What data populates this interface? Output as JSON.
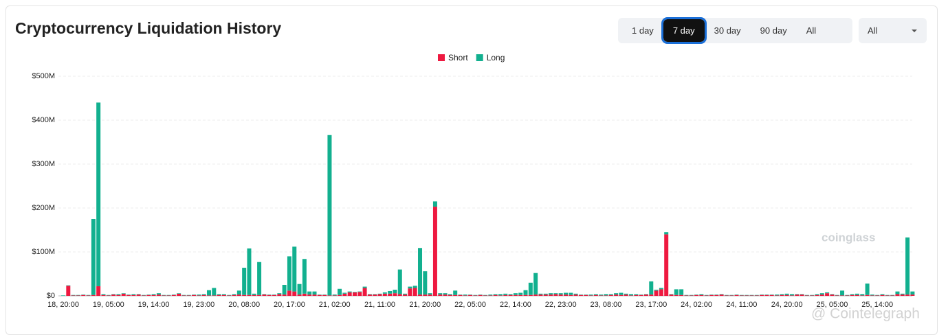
{
  "page": {
    "title": "Cryptocurrency Liquidation History",
    "ranges": [
      "1 day",
      "7 day",
      "30 day",
      "90 day",
      "All"
    ],
    "selected_range": 1,
    "dropdown": "All",
    "watermarks": [
      "coinglass",
      "@ Cointelegraph"
    ]
  },
  "chart_data": {
    "type": "stacked_bar",
    "categories": [
      "18, 20:00",
      null,
      null,
      null,
      null,
      null,
      null,
      null,
      null,
      "19, 05:00",
      null,
      null,
      null,
      null,
      null,
      null,
      null,
      null,
      "19, 14:00",
      null,
      null,
      null,
      null,
      null,
      null,
      null,
      null,
      "19, 23:00",
      null,
      null,
      null,
      null,
      null,
      null,
      null,
      null,
      "20, 08:00",
      null,
      null,
      null,
      null,
      null,
      null,
      null,
      null,
      "20, 17:00",
      null,
      null,
      null,
      null,
      null,
      null,
      null,
      null,
      "21, 02:00",
      null,
      null,
      null,
      null,
      null,
      null,
      null,
      null,
      "21, 11:00",
      null,
      null,
      null,
      null,
      null,
      null,
      null,
      null,
      "21, 20:00",
      null,
      null,
      null,
      null,
      null,
      null,
      null,
      null,
      "22, 05:00",
      null,
      null,
      null,
      null,
      null,
      null,
      null,
      null,
      "22, 14:00",
      null,
      null,
      null,
      null,
      null,
      null,
      null,
      null,
      "22, 23:00",
      null,
      null,
      null,
      null,
      null,
      null,
      null,
      null,
      "23, 08:00",
      null,
      null,
      null,
      null,
      null,
      null,
      null,
      null,
      "23, 17:00",
      null,
      null,
      null,
      null,
      null,
      null,
      null,
      null,
      "24, 02:00",
      null,
      null,
      null,
      null,
      null,
      null,
      null,
      null,
      "24, 11:00",
      null,
      null,
      null,
      null,
      null,
      null,
      null,
      null,
      "24, 20:00",
      null,
      null,
      null,
      null,
      null,
      null,
      null,
      null,
      "25, 05:00",
      null,
      null,
      null,
      null,
      null,
      null,
      null,
      null,
      "25, 14:00",
      null,
      null,
      null,
      null,
      null,
      null,
      null
    ],
    "series": [
      {
        "name": "Short",
        "color": "#ee1940",
        "values": [
          0,
          23,
          1,
          1,
          2,
          1,
          2,
          22,
          2,
          1,
          3,
          2,
          5,
          2,
          2,
          3,
          1,
          2,
          2,
          3,
          1,
          1,
          2,
          5,
          1,
          1,
          2,
          1,
          2,
          1,
          1,
          2,
          2,
          1,
          2,
          3,
          2,
          2,
          2,
          2,
          3,
          2,
          2,
          4,
          3,
          12,
          10,
          3,
          5,
          3,
          3,
          2,
          2,
          1,
          1,
          2,
          5,
          8,
          8,
          9,
          18,
          3,
          3,
          4,
          5,
          5,
          6,
          4,
          3,
          17,
          18,
          3,
          3,
          3,
          203,
          3,
          3,
          2,
          2,
          2,
          1,
          2,
          1,
          2,
          1,
          1,
          2,
          1,
          2,
          2,
          2,
          2,
          2,
          2,
          3,
          3,
          3,
          3,
          4,
          3,
          3,
          2,
          3,
          2,
          2,
          1,
          2,
          1,
          1,
          2,
          3,
          2,
          3,
          1,
          2,
          2,
          3,
          3,
          12,
          15,
          140,
          3,
          2,
          2,
          1,
          1,
          2,
          2,
          1,
          2,
          2,
          3,
          1,
          1,
          2,
          1,
          1,
          1,
          1,
          2,
          2,
          2,
          1,
          2,
          2,
          1,
          3,
          3,
          1,
          1,
          2,
          3,
          6,
          3,
          1,
          1,
          1,
          2,
          2,
          1,
          2,
          1,
          1,
          2,
          1,
          1,
          4,
          3,
          3,
          3
        ]
      },
      {
        "name": "Long",
        "color": "#12b08f",
        "values": [
          1,
          1,
          1,
          1,
          1,
          1,
          173,
          418,
          2,
          1,
          1,
          2,
          1,
          1,
          2,
          1,
          1,
          1,
          2,
          3,
          1,
          1,
          1,
          1,
          1,
          1,
          1,
          2,
          2,
          12,
          17,
          2,
          2,
          1,
          2,
          9,
          62,
          106,
          3,
          75,
          1,
          1,
          1,
          2,
          22,
          78,
          102,
          24,
          79,
          7,
          7,
          1,
          1,
          365,
          2,
          14,
          2,
          2,
          1,
          1,
          3,
          1,
          1,
          1,
          3,
          6,
          8,
          56,
          2,
          4,
          5,
          106,
          53,
          3,
          12,
          3,
          3,
          2,
          10,
          1,
          2,
          1,
          1,
          1,
          1,
          2,
          2,
          3,
          3,
          2,
          4,
          5,
          11,
          28,
          49,
          2,
          2,
          3,
          2,
          3,
          4,
          5,
          2,
          1,
          1,
          2,
          2,
          2,
          3,
          2,
          3,
          5,
          2,
          3,
          2,
          1,
          1,
          30,
          2,
          3,
          5,
          1,
          13,
          13,
          1,
          1,
          1,
          2,
          1,
          1,
          1,
          1,
          1,
          1,
          1,
          1,
          1,
          1,
          1,
          1,
          1,
          1,
          2,
          2,
          3,
          3,
          1,
          1,
          1,
          1,
          2,
          3,
          2,
          1,
          1,
          11,
          1,
          2,
          3,
          3,
          26,
          2,
          1,
          2,
          1,
          1,
          6,
          2,
          130,
          7
        ]
      }
    ],
    "ylim": [
      0,
      500
    ],
    "yticks": [
      {
        "value": 0,
        "label": "$0"
      },
      {
        "value": 100,
        "label": "$100M"
      },
      {
        "value": 200,
        "label": "$200M"
      },
      {
        "value": 300,
        "label": "$300M"
      },
      {
        "value": 400,
        "label": "$400M"
      },
      {
        "value": 500,
        "label": "$500M"
      }
    ],
    "grid": true,
    "legend": "top"
  }
}
